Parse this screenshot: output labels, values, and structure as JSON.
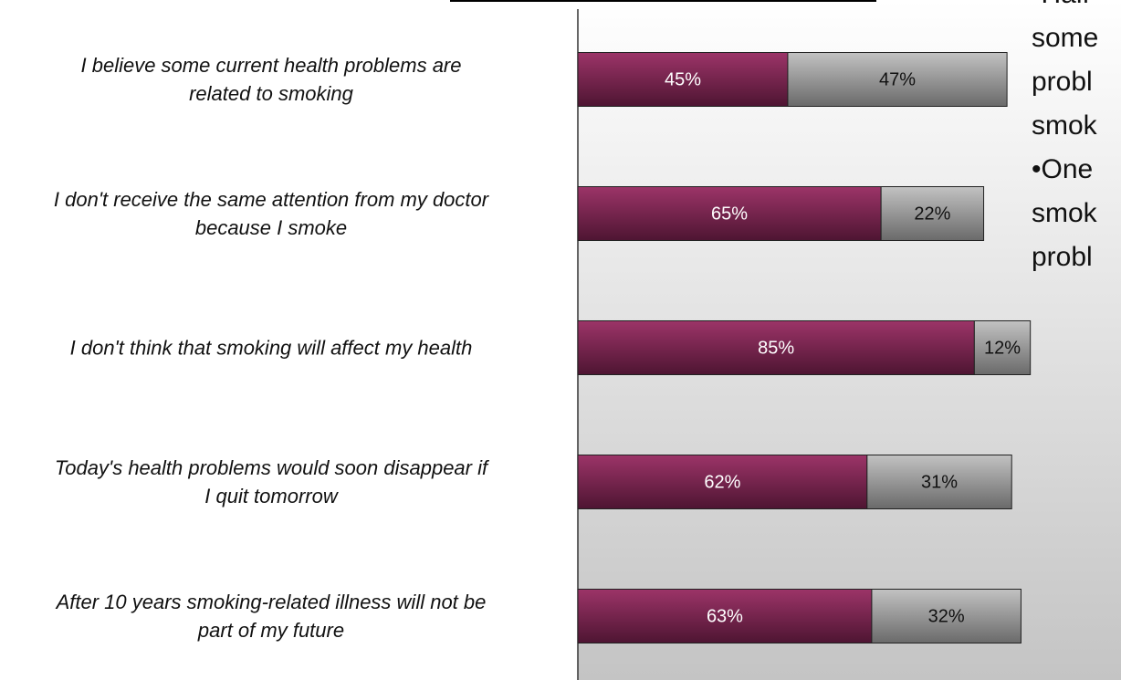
{
  "chart_data": {
    "type": "stacked-bar-horizontal",
    "categories": [
      "I believe some current health problems are\nrelated to smoking",
      "I don't receive the same attention from my doctor\nbecause I smoke",
      "I don't think that smoking will affect my health",
      "Today's health problems would soon disappear if\nI quit tomorrow",
      "After 10 years smoking-related illness will not be\npart of my future"
    ],
    "series": [
      {
        "color": "#8c2c5c",
        "values": [
          45,
          65,
          85,
          62,
          63
        ],
        "value_labels": [
          "45%",
          "65%",
          "85%",
          "62%",
          "63%"
        ]
      },
      {
        "color": "#a8a8a8",
        "values": [
          47,
          22,
          12,
          31,
          32
        ],
        "value_labels": [
          "47%",
          "22%",
          "12%",
          "31%",
          "32%"
        ]
      }
    ],
    "xlim": [
      0,
      100
    ],
    "side_text": [
      "•Half",
      "some",
      "probl",
      "smok",
      "•One",
      "smok",
      "probl"
    ]
  }
}
